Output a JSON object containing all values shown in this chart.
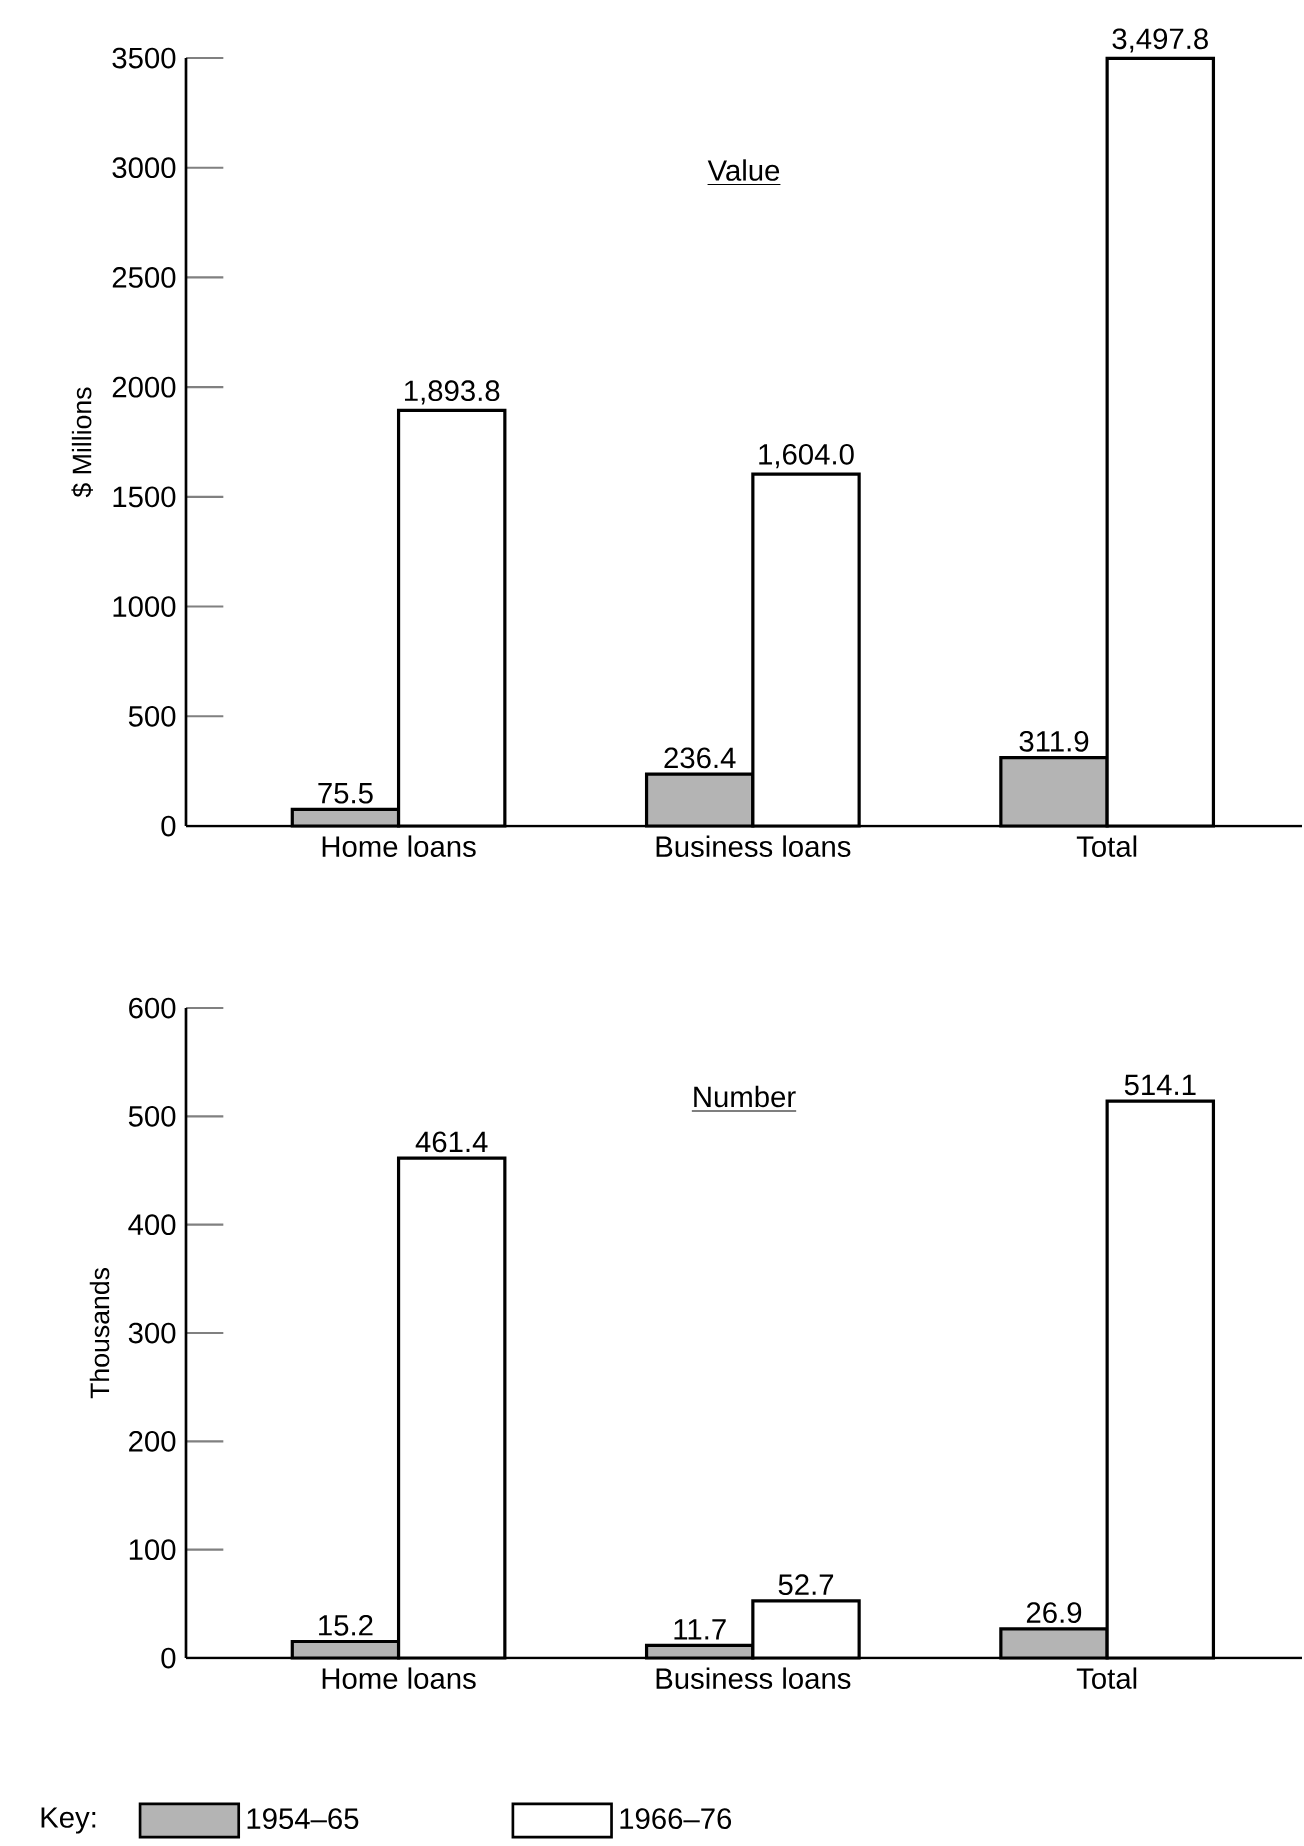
{
  "chart_data": [
    {
      "type": "bar",
      "title": "Value",
      "ylabel": "$ Millions",
      "categories": [
        "Home loans",
        "Business loans",
        "Total"
      ],
      "series": [
        {
          "color": "#b4b4b4",
          "values": [
            75.5,
            236.4,
            311.9
          ],
          "value_labels": [
            "75.5",
            "236.4",
            "311.9"
          ]
        },
        {
          "color": "#ffffff",
          "values": [
            1893.8,
            1604.0,
            3497.8
          ],
          "value_labels": [
            "1,893.8",
            "1,604.0",
            "3,497.8"
          ]
        }
      ],
      "ylim": [
        0,
        3500
      ],
      "yticks": [
        0,
        500,
        1000,
        1500,
        2000,
        2500,
        3000,
        3500
      ],
      "legend": false
    },
    {
      "type": "bar",
      "title": "Number",
      "ylabel": "Thousands",
      "categories": [
        "Home loans",
        "Business loans",
        "Total"
      ],
      "series": [
        {
          "name": "1954–65",
          "color": "#b4b4b4",
          "values": [
            15.2,
            11.7,
            26.9
          ],
          "value_labels": [
            "15.2",
            "11.7",
            "26.9"
          ]
        },
        {
          "name": "1966–76",
          "color": "#ffffff",
          "values": [
            461.4,
            52.7,
            514.1
          ],
          "value_labels": [
            "461.4",
            "52.7",
            "514.1"
          ]
        }
      ],
      "ylim": [
        0,
        600
      ],
      "yticks": [
        0,
        100,
        200,
        300,
        400,
        500,
        600
      ],
      "legend": "bottom",
      "legend_title": "Key:"
    }
  ]
}
